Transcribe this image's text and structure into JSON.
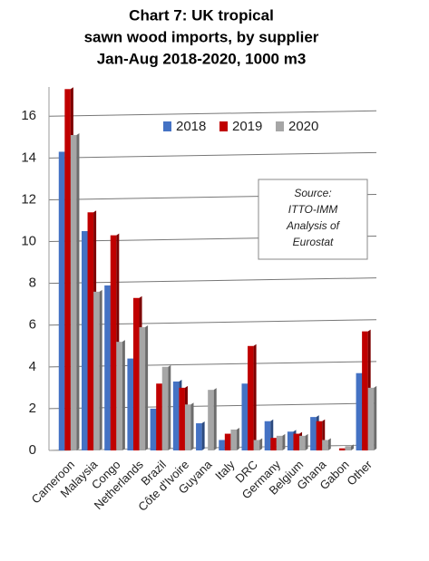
{
  "chart_data": {
    "type": "bar",
    "title_lines": [
      "Chart 7: UK tropical",
      "sawn wood imports, by supplier",
      "Jan-Aug 2018-2020, 1000 m3"
    ],
    "source_lines": [
      "Source:",
      "ITTO-IMM",
      "Analysis of",
      "Eurostat"
    ],
    "categories": [
      "Cameroon",
      "Malaysia",
      "Congo",
      "Netherlands",
      "Brazil",
      "Côte d'Ivoire",
      "Guyana",
      "Italy",
      "DRC",
      "Germany",
      "Belgium",
      "Ghana",
      "Gabon",
      "Other"
    ],
    "series": [
      {
        "name": "2018",
        "color": "#4472c4",
        "values": [
          14.3,
          10.5,
          7.9,
          4.4,
          2.0,
          3.3,
          1.3,
          0.5,
          3.2,
          1.4,
          0.9,
          1.6,
          0.0,
          3.7
        ]
      },
      {
        "name": "2019",
        "color": "#c00000",
        "values": [
          17.3,
          11.4,
          10.3,
          7.3,
          3.2,
          3.0,
          0,
          0.8,
          5.0,
          0.6,
          0.8,
          1.4,
          0.1,
          5.7
        ]
      },
      {
        "name": "2020",
        "color": "#a6a6a6",
        "values": [
          15.1,
          7.6,
          5.2,
          5.9,
          4.0,
          2.2,
          2.9,
          1.0,
          0.5,
          0.7,
          0.7,
          0.5,
          0.2,
          3.0
        ]
      }
    ],
    "ylim": [
      0,
      17.4
    ],
    "yticks": [
      0,
      2,
      4,
      6,
      8,
      10,
      12,
      14,
      16
    ],
    "grid": true
  }
}
